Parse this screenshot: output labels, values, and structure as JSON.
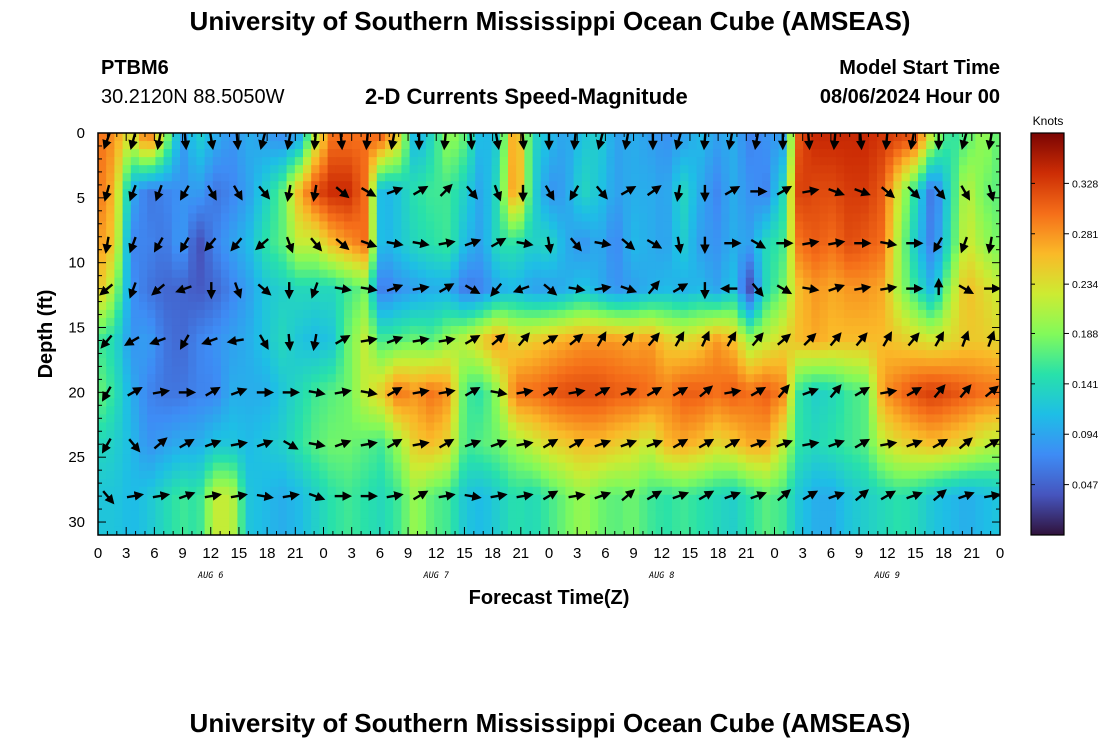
{
  "header": {
    "title": "University of Southern Mississippi Ocean Cube (AMSEAS)",
    "station": "PTBM6",
    "coords": "30.2120N  88.5050W",
    "subtitle": "2-D Currents Speed-Magnitude",
    "start_label": "Model Start Time",
    "start_value": "08/06/2024 Hour 00"
  },
  "footer": {
    "title": "University of Southern Mississippi Ocean Cube (AMSEAS)"
  },
  "chart_data": {
    "type": "heatmap",
    "title": "2-D Currents Speed-Magnitude",
    "xlabel": "Forecast Time(Z)",
    "ylabel": "Depth (ft)",
    "x_hours": [
      0,
      96
    ],
    "ylim": [
      0,
      31
    ],
    "y_reversed": true,
    "x_tick_labels": [
      "0",
      "3",
      "6",
      "9",
      "12",
      "15",
      "18",
      "21",
      "0",
      "3",
      "6",
      "9",
      "12",
      "15",
      "18",
      "21",
      "0",
      "3",
      "6",
      "9",
      "12",
      "15",
      "18",
      "21",
      "0",
      "3",
      "6",
      "9",
      "12",
      "15",
      "18",
      "21",
      "0"
    ],
    "y_ticks": [
      0,
      5,
      10,
      15,
      20,
      25,
      30
    ],
    "day_labels": [
      {
        "label": "AUG 6",
        "hour": 12
      },
      {
        "label": "AUG 7",
        "hour": 36
      },
      {
        "label": "AUG 8",
        "hour": 60
      },
      {
        "label": "AUG 9",
        "hour": 84
      }
    ],
    "depth_levels": [
      0.5,
      4.5,
      8.5,
      12.0,
      16.0,
      20.0,
      24.0,
      28.0
    ],
    "speed_grid": [
      [
        0.3,
        0.28,
        0.22,
        0.3,
        0.2,
        0.08,
        0.13,
        0.1,
        0.08,
        0.1,
        0.09,
        0.08,
        0.1,
        0.22,
        0.3,
        0.3,
        0.3,
        0.3,
        0.24,
        0.1,
        0.14,
        0.2,
        0.17,
        0.1,
        0.13,
        0.3,
        0.14,
        0.11,
        0.09,
        0.12,
        0.13,
        0.09,
        0.1,
        0.09,
        0.08,
        0.09,
        0.11,
        0.09,
        0.1,
        0.07,
        0.08,
        0.09,
        0.32,
        0.34,
        0.34,
        0.34,
        0.34,
        0.33,
        0.32,
        0.31,
        0.2,
        0.15,
        0.17,
        0.2,
        0.17
      ],
      [
        0.3,
        0.26,
        0.1,
        0.06,
        0.07,
        0.08,
        0.09,
        0.06,
        0.07,
        0.09,
        0.13,
        0.17,
        0.26,
        0.32,
        0.34,
        0.34,
        0.3,
        0.1,
        0.12,
        0.15,
        0.16,
        0.16,
        0.13,
        0.09,
        0.15,
        0.3,
        0.14,
        0.08,
        0.09,
        0.14,
        0.12,
        0.09,
        0.1,
        0.1,
        0.09,
        0.14,
        0.1,
        0.07,
        0.1,
        0.08,
        0.07,
        0.14,
        0.33,
        0.32,
        0.32,
        0.33,
        0.33,
        0.31,
        0.22,
        0.14,
        0.05,
        0.14,
        0.22,
        0.18,
        0.17
      ],
      [
        0.28,
        0.25,
        0.07,
        0.07,
        0.06,
        0.09,
        0.03,
        0.07,
        0.09,
        0.11,
        0.15,
        0.17,
        0.22,
        0.22,
        0.26,
        0.28,
        0.3,
        0.1,
        0.12,
        0.14,
        0.15,
        0.16,
        0.11,
        0.09,
        0.15,
        0.15,
        0.13,
        0.14,
        0.1,
        0.08,
        0.1,
        0.07,
        0.11,
        0.1,
        0.09,
        0.13,
        0.09,
        0.08,
        0.1,
        0.09,
        0.14,
        0.16,
        0.3,
        0.31,
        0.3,
        0.32,
        0.31,
        0.3,
        0.2,
        0.12,
        0.06,
        0.15,
        0.23,
        0.2,
        0.18
      ],
      [
        0.26,
        0.2,
        0.08,
        0.06,
        0.05,
        0.05,
        0.04,
        0.05,
        0.07,
        0.09,
        0.12,
        0.13,
        0.14,
        0.14,
        0.14,
        0.16,
        0.18,
        0.06,
        0.08,
        0.09,
        0.1,
        0.1,
        0.06,
        0.07,
        0.1,
        0.11,
        0.09,
        0.09,
        0.1,
        0.12,
        0.1,
        0.08,
        0.09,
        0.1,
        0.11,
        0.1,
        0.11,
        0.09,
        0.12,
        0.03,
        0.14,
        0.18,
        0.26,
        0.28,
        0.27,
        0.28,
        0.28,
        0.27,
        0.2,
        0.15,
        0.1,
        0.2,
        0.26,
        0.24,
        0.22
      ],
      [
        0.16,
        0.14,
        0.08,
        0.09,
        0.06,
        0.05,
        0.07,
        0.08,
        0.09,
        0.1,
        0.12,
        0.14,
        0.12,
        0.11,
        0.12,
        0.18,
        0.22,
        0.16,
        0.17,
        0.18,
        0.17,
        0.2,
        0.22,
        0.25,
        0.28,
        0.24,
        0.25,
        0.26,
        0.27,
        0.28,
        0.28,
        0.28,
        0.27,
        0.28,
        0.25,
        0.24,
        0.25,
        0.28,
        0.26,
        0.2,
        0.22,
        0.24,
        0.26,
        0.27,
        0.26,
        0.26,
        0.26,
        0.26,
        0.25,
        0.24,
        0.23,
        0.24,
        0.25,
        0.25,
        0.24
      ],
      [
        0.18,
        0.15,
        0.1,
        0.07,
        0.06,
        0.06,
        0.07,
        0.07,
        0.1,
        0.1,
        0.1,
        0.12,
        0.14,
        0.16,
        0.17,
        0.18,
        0.22,
        0.25,
        0.3,
        0.28,
        0.3,
        0.28,
        0.16,
        0.15,
        0.2,
        0.3,
        0.3,
        0.31,
        0.32,
        0.32,
        0.32,
        0.31,
        0.31,
        0.3,
        0.29,
        0.31,
        0.31,
        0.3,
        0.31,
        0.3,
        0.31,
        0.29,
        0.15,
        0.13,
        0.14,
        0.16,
        0.17,
        0.28,
        0.3,
        0.32,
        0.33,
        0.32,
        0.31,
        0.3,
        0.3
      ],
      [
        0.14,
        0.13,
        0.11,
        0.08,
        0.09,
        0.1,
        0.1,
        0.12,
        0.12,
        0.11,
        0.12,
        0.13,
        0.15,
        0.17,
        0.18,
        0.18,
        0.17,
        0.16,
        0.2,
        0.25,
        0.26,
        0.24,
        0.16,
        0.17,
        0.18,
        0.2,
        0.22,
        0.24,
        0.25,
        0.26,
        0.26,
        0.25,
        0.24,
        0.22,
        0.26,
        0.27,
        0.26,
        0.24,
        0.25,
        0.27,
        0.27,
        0.22,
        0.15,
        0.14,
        0.15,
        0.16,
        0.17,
        0.22,
        0.24,
        0.25,
        0.26,
        0.25,
        0.24,
        0.22,
        0.21
      ],
      [
        0.12,
        0.12,
        0.11,
        0.12,
        0.14,
        0.16,
        0.15,
        0.22,
        0.22,
        0.12,
        0.11,
        0.1,
        0.11,
        0.13,
        0.15,
        0.16,
        0.15,
        0.14,
        0.16,
        0.2,
        0.17,
        0.16,
        0.12,
        0.11,
        0.13,
        0.15,
        0.14,
        0.16,
        0.18,
        0.2,
        0.18,
        0.17,
        0.18,
        0.16,
        0.15,
        0.16,
        0.15,
        0.14,
        0.13,
        0.15,
        0.17,
        0.16,
        0.12,
        0.1,
        0.1,
        0.12,
        0.13,
        0.14,
        0.15,
        0.14,
        0.12,
        0.11,
        0.1,
        0.11,
        0.12
      ]
    ],
    "vector_directions_deg": [
      [
        200,
        195,
        190,
        175,
        170,
        175,
        195,
        190,
        185,
        175,
        185,
        190,
        180,
        185,
        175,
        170,
        175,
        180,
        185,
        195,
        190,
        180,
        195,
        185,
        190,
        190,
        180,
        175,
        185,
        175,
        185,
        190,
        180,
        195,
        190
      ],
      [
        195,
        200,
        200,
        210,
        150,
        150,
        140,
        190,
        190,
        130,
        120,
        70,
        60,
        45,
        140,
        160,
        180,
        150,
        210,
        140,
        60,
        55,
        190,
        180,
        60,
        90,
        60,
        80,
        110,
        110,
        130,
        135,
        140,
        150,
        165
      ],
      [
        190,
        200,
        210,
        210,
        220,
        220,
        230,
        160,
        140,
        130,
        110,
        100,
        100,
        80,
        70,
        60,
        100,
        170,
        140,
        100,
        130,
        120,
        170,
        180,
        90,
        120,
        90,
        80,
        80,
        90,
        100,
        90,
        210,
        200,
        190
      ],
      [
        230,
        200,
        230,
        250,
        180,
        160,
        130,
        180,
        200,
        100,
        100,
        70,
        80,
        60,
        120,
        220,
        250,
        130,
        100,
        80,
        110,
        40,
        60,
        180,
        270,
        140,
        120,
        100,
        70,
        80,
        80,
        90,
        0,
        120,
        90
      ],
      [
        220,
        240,
        250,
        210,
        250,
        260,
        150,
        175,
        190,
        60,
        80,
        70,
        80,
        80,
        60,
        50,
        40,
        60,
        50,
        30,
        40,
        40,
        30,
        25,
        30,
        40,
        50,
        45,
        40,
        40,
        30,
        40,
        30,
        20,
        20
      ],
      [
        210,
        60,
        80,
        90,
        60,
        70,
        90,
        90,
        100,
        80,
        100,
        60,
        80,
        80,
        60,
        100,
        80,
        60,
        80,
        60,
        70,
        60,
        60,
        50,
        80,
        60,
        40,
        70,
        40,
        60,
        80,
        60,
        40,
        40,
        50
      ],
      [
        210,
        140,
        50,
        60,
        70,
        80,
        70,
        120,
        100,
        70,
        80,
        60,
        80,
        60,
        70,
        70,
        80,
        60,
        60,
        70,
        70,
        70,
        60,
        60,
        60,
        70,
        70,
        80,
        70,
        60,
        80,
        70,
        60,
        50,
        60
      ],
      [
        140,
        80,
        80,
        70,
        80,
        80,
        100,
        80,
        110,
        90,
        90,
        80,
        60,
        80,
        100,
        80,
        80,
        60,
        80,
        70,
        50,
        60,
        70,
        60,
        70,
        70,
        50,
        60,
        70,
        50,
        60,
        70,
        50,
        70,
        80
      ]
    ],
    "colorbar": {
      "label": "Knots",
      "ticks": [
        0.047,
        0.094,
        0.141,
        0.188,
        0.234,
        0.281,
        0.328
      ],
      "range": [
        0.0,
        0.375
      ],
      "colormap": "turbo"
    }
  }
}
